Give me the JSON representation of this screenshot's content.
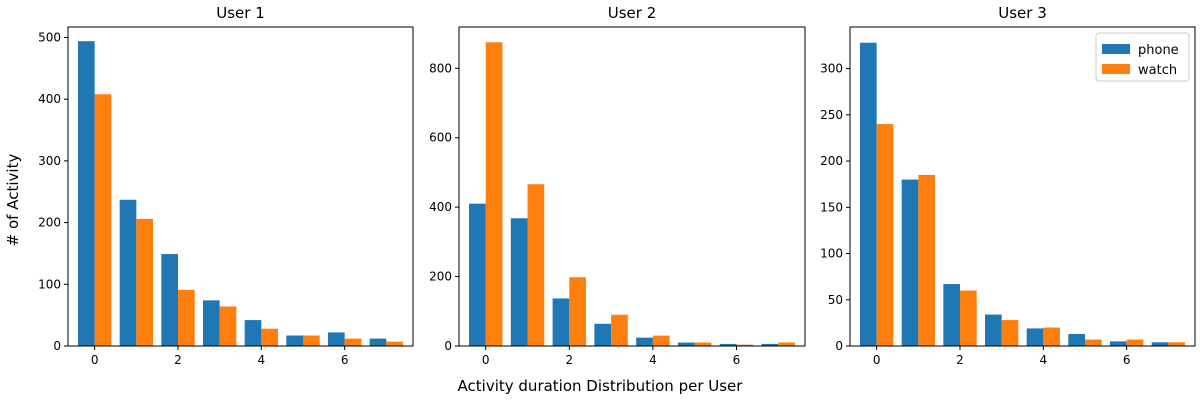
{
  "figure": {
    "xlabel": "Activity duration Distribution per User",
    "ylabel": "# of Activity"
  },
  "legend": {
    "placement": "top-right",
    "entries": [
      {
        "label": "phone",
        "color": "#1f77b4"
      },
      {
        "label": "watch",
        "color": "#ff7f0e"
      }
    ]
  },
  "chart_data": [
    {
      "type": "bar",
      "title": "User 1",
      "x": [
        0,
        1,
        2,
        3,
        4,
        5,
        6,
        7
      ],
      "xticks": [
        0,
        2,
        4,
        6
      ],
      "yticks": [
        0,
        100,
        200,
        300,
        400,
        500
      ],
      "xlim": [
        -0.64,
        7.64
      ],
      "ylim": [
        0,
        517
      ],
      "series": [
        {
          "name": "phone",
          "color": "#1f77b4",
          "values": [
            494,
            237,
            149,
            74,
            42,
            17,
            22,
            12
          ]
        },
        {
          "name": "watch",
          "color": "#ff7f0e",
          "values": [
            408,
            206,
            91,
            64,
            28,
            17,
            12,
            7
          ]
        }
      ]
    },
    {
      "type": "bar",
      "title": "User 2",
      "x": [
        0,
        1,
        2,
        3,
        4,
        5,
        6,
        7
      ],
      "xticks": [
        0,
        2,
        4,
        6
      ],
      "yticks": [
        0,
        200,
        400,
        600,
        800
      ],
      "xlim": [
        -0.64,
        7.64
      ],
      "ylim": [
        0,
        919
      ],
      "series": [
        {
          "name": "phone",
          "color": "#1f77b4",
          "values": [
            410,
            368,
            137,
            64,
            24,
            10,
            6,
            6
          ]
        },
        {
          "name": "watch",
          "color": "#ff7f0e",
          "values": [
            875,
            466,
            198,
            90,
            30,
            10,
            4,
            10
          ]
        }
      ]
    },
    {
      "type": "bar",
      "title": "User 3",
      "x": [
        0,
        1,
        2,
        3,
        4,
        5,
        6,
        7
      ],
      "xticks": [
        0,
        2,
        4,
        6
      ],
      "yticks": [
        0,
        50,
        100,
        150,
        200,
        250,
        300
      ],
      "xlim": [
        -0.64,
        7.64
      ],
      "ylim": [
        0,
        345
      ],
      "series": [
        {
          "name": "phone",
          "color": "#1f77b4",
          "values": [
            328,
            180,
            67,
            34,
            19,
            13,
            5,
            4
          ]
        },
        {
          "name": "watch",
          "color": "#ff7f0e",
          "values": [
            240,
            185,
            60,
            28,
            20,
            7,
            7,
            4
          ]
        }
      ]
    }
  ]
}
